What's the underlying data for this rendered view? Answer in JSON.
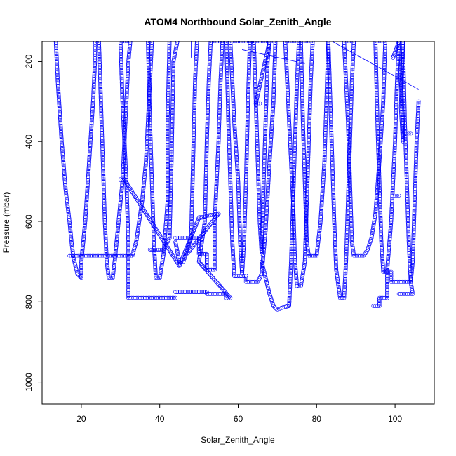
{
  "chart_data": {
    "type": "scatter",
    "title": "ATOM4 Northbound Solar_Zenith_Angle",
    "xlabel": "Solar_Zenith_Angle",
    "ylabel": "Pressure (mbar)",
    "xlim": [
      10,
      110
    ],
    "ylim": [
      1055,
      150
    ],
    "y_reversed": true,
    "xticks": [
      "20",
      "40",
      "60",
      "80",
      "100"
    ],
    "yticks": [
      "200",
      "400",
      "600",
      "800",
      "1000"
    ],
    "marker": "open-circle",
    "color": "#0000ff",
    "series": [
      {
        "points": [
          [
            13.5,
            150
          ],
          [
            14,
            250
          ],
          [
            15,
            400
          ],
          [
            16,
            520
          ],
          [
            17,
            600
          ],
          [
            17.5,
            650
          ],
          [
            18,
            690
          ],
          [
            19,
            730
          ],
          [
            20,
            740
          ],
          [
            20,
            700
          ],
          [
            21,
            600
          ],
          [
            22,
            450
          ],
          [
            23,
            300
          ],
          [
            23.5,
            200
          ],
          [
            23.5,
            150
          ],
          [
            24.5,
            150
          ],
          [
            25,
            300
          ],
          [
            25.5,
            450
          ],
          [
            26,
            600
          ],
          [
            26.5,
            700
          ],
          [
            27,
            740
          ],
          [
            28,
            740
          ],
          [
            28.5,
            700
          ],
          [
            29.5,
            600
          ],
          [
            30.5,
            500
          ],
          [
            31,
            400
          ],
          [
            31.5,
            300
          ],
          [
            32,
            200
          ],
          [
            32.5,
            150
          ],
          [
            30,
            150
          ],
          [
            30.5,
            300
          ],
          [
            31.5,
            500
          ],
          [
            32,
            650
          ],
          [
            32,
            790
          ],
          [
            35,
            790
          ],
          [
            40,
            790
          ],
          [
            42,
            790
          ],
          [
            44,
            790
          ],
          [
            17,
            685
          ],
          [
            20,
            685
          ],
          [
            30,
            685
          ],
          [
            33,
            685
          ],
          [
            34,
            650
          ],
          [
            35.5,
            550
          ],
          [
            36.5,
            450
          ],
          [
            37,
            350
          ],
          [
            37.5,
            250
          ],
          [
            38,
            150
          ],
          [
            37,
            150
          ],
          [
            37.5,
            350
          ],
          [
            38,
            500
          ],
          [
            38.5,
            650
          ],
          [
            39,
            740
          ],
          [
            40,
            740
          ],
          [
            41,
            680
          ],
          [
            42,
            550
          ],
          [
            42,
            350
          ],
          [
            42.5,
            150
          ],
          [
            37.5,
            670
          ],
          [
            41,
            670
          ],
          [
            42.5,
            640
          ],
          [
            43,
            450
          ],
          [
            43.5,
            200
          ],
          [
            44.5,
            150
          ],
          [
            44,
            650
          ],
          [
            45,
            700
          ],
          [
            46,
            700
          ],
          [
            48,
            640
          ],
          [
            48.5,
            450
          ],
          [
            49,
            250
          ],
          [
            49.5,
            150
          ],
          [
            44,
            640
          ],
          [
            50,
            640
          ],
          [
            50,
            680
          ],
          [
            52,
            680
          ],
          [
            52,
            720
          ],
          [
            54,
            720
          ],
          [
            54,
            600
          ],
          [
            55,
            400
          ],
          [
            55.5,
            250
          ],
          [
            56,
            150
          ],
          [
            44,
            775
          ],
          [
            48,
            775
          ],
          [
            52,
            775
          ],
          [
            52,
            780
          ],
          [
            57,
            780
          ],
          [
            57,
            790
          ],
          [
            58,
            790
          ],
          [
            50,
            700
          ],
          [
            51.5,
            600
          ],
          [
            52,
            400
          ],
          [
            52.5,
            250
          ],
          [
            53,
            150
          ],
          [
            57,
            150
          ],
          [
            57.5,
            350
          ],
          [
            58,
            500
          ],
          [
            58.5,
            650
          ],
          [
            59,
            735
          ],
          [
            62,
            735
          ],
          [
            62,
            750
          ],
          [
            65,
            750
          ],
          [
            66,
            730
          ],
          [
            67,
            620
          ],
          [
            68,
            450
          ],
          [
            69,
            300
          ],
          [
            69.5,
            150
          ],
          [
            58,
            150
          ],
          [
            59,
            350
          ],
          [
            60,
            500
          ],
          [
            60.5,
            650
          ],
          [
            61,
            730
          ],
          [
            61.5,
            650
          ],
          [
            62,
            500
          ],
          [
            62.5,
            300
          ],
          [
            63,
            150
          ],
          [
            64,
            150
          ],
          [
            64.5,
            300
          ],
          [
            65,
            450
          ],
          [
            65.5,
            600
          ],
          [
            66,
            680
          ],
          [
            66,
            650
          ],
          [
            66.5,
            500
          ],
          [
            67,
            350
          ],
          [
            67.5,
            200
          ],
          [
            68,
            150
          ],
          [
            64.5,
            305
          ],
          [
            65.5,
            305
          ],
          [
            66,
            700
          ],
          [
            68,
            780
          ],
          [
            69,
            810
          ],
          [
            70,
            820
          ],
          [
            71,
            815
          ],
          [
            73,
            810
          ],
          [
            73.5,
            700
          ],
          [
            74,
            550
          ],
          [
            74.5,
            400
          ],
          [
            75,
            250
          ],
          [
            75.5,
            150
          ],
          [
            72,
            150
          ],
          [
            73,
            350
          ],
          [
            74,
            550
          ],
          [
            74.5,
            700
          ],
          [
            75,
            760
          ],
          [
            76,
            760
          ],
          [
            77,
            700
          ],
          [
            77.5,
            550
          ],
          [
            78,
            400
          ],
          [
            78.5,
            250
          ],
          [
            79,
            150
          ],
          [
            76,
            150
          ],
          [
            76.5,
            350
          ],
          [
            77,
            500
          ],
          [
            77.5,
            650
          ],
          [
            78,
            685
          ],
          [
            80,
            685
          ],
          [
            81,
            600
          ],
          [
            82,
            450
          ],
          [
            82.5,
            300
          ],
          [
            83,
            150
          ],
          [
            83,
            150
          ],
          [
            83.5,
            300
          ],
          [
            84,
            450
          ],
          [
            84.5,
            600
          ],
          [
            85,
            720
          ],
          [
            86,
            790
          ],
          [
            87,
            790
          ],
          [
            87.5,
            700
          ],
          [
            88,
            550
          ],
          [
            88.5,
            400
          ],
          [
            89,
            250
          ],
          [
            89.5,
            150
          ],
          [
            87,
            150
          ],
          [
            88,
            350
          ],
          [
            88.5,
            500
          ],
          [
            89,
            650
          ],
          [
            89.5,
            685
          ],
          [
            92,
            685
          ],
          [
            93,
            670
          ],
          [
            94,
            640
          ],
          [
            95,
            580
          ],
          [
            96,
            450
          ],
          [
            97,
            300
          ],
          [
            97.5,
            150
          ],
          [
            95,
            150
          ],
          [
            95.5,
            350
          ],
          [
            96,
            500
          ],
          [
            96.5,
            650
          ],
          [
            97,
            725
          ],
          [
            99,
            725
          ],
          [
            99,
            750
          ],
          [
            104,
            750
          ],
          [
            104.5,
            700
          ],
          [
            105,
            550
          ],
          [
            105.5,
            400
          ],
          [
            106,
            300
          ],
          [
            94.5,
            810
          ],
          [
            96,
            810
          ],
          [
            96,
            790
          ],
          [
            98,
            790
          ],
          [
            98,
            720
          ],
          [
            99,
            600
          ],
          [
            99.5,
            500
          ],
          [
            100,
            400
          ],
          [
            100.5,
            250
          ],
          [
            101,
            150
          ],
          [
            99.5,
            190
          ],
          [
            100,
            535
          ],
          [
            101,
            535
          ],
          [
            101,
            150
          ],
          [
            101.5,
            250
          ],
          [
            102,
            350
          ],
          [
            102,
            400
          ],
          [
            101.5,
            315
          ],
          [
            102,
            150
          ],
          [
            102.5,
            350
          ],
          [
            103,
            500
          ],
          [
            103.5,
            650
          ],
          [
            104,
            750
          ],
          [
            104.5,
            780
          ],
          [
            101,
            780
          ],
          [
            103.5,
            380
          ],
          [
            104,
            380
          ],
          [
            30,
            495
          ],
          [
            31,
            495
          ],
          [
            45,
            710
          ],
          [
            50,
            590
          ],
          [
            55,
            580
          ],
          [
            47,
            680
          ]
        ]
      }
    ],
    "connector_lines": [
      [
        [
          61,
          170
        ],
        [
          77,
          205
        ]
      ],
      [
        [
          84,
          150
        ],
        [
          106,
          270
        ]
      ],
      [
        [
          48,
          150
        ],
        [
          48,
          190
        ]
      ]
    ]
  }
}
